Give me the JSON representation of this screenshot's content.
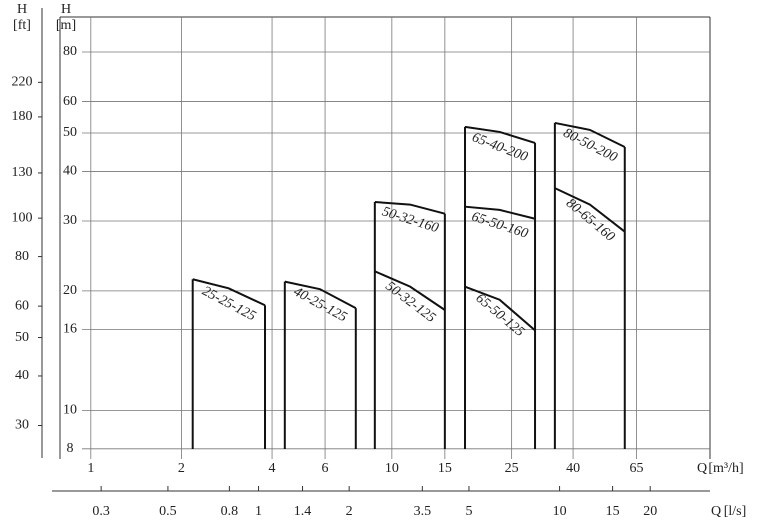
{
  "chart_data": {
    "type": "pump-curves",
    "y_title": "H",
    "y_unit": "[m]",
    "y2_title": "H",
    "y2_unit": "[ft]",
    "x_title": "Q",
    "x_unit": "[m³/h]",
    "x2_title": "Q",
    "x2_unit": "[l/s]",
    "log_x": true,
    "log_y": true,
    "grid": true,
    "color": "#111111",
    "xlim": [
      0.79,
      114
    ],
    "xticks": [
      1,
      2,
      4,
      6,
      10,
      15,
      25,
      40,
      65
    ],
    "x2lim": [
      0.219,
      31.6
    ],
    "x2ticks": [
      0.3,
      0.5,
      0.8,
      1,
      1.4,
      2,
      3.5,
      5,
      10,
      15,
      20
    ],
    "ylim": [
      7.54,
      98
    ],
    "yticks": [
      8,
      10,
      16,
      20,
      30,
      40,
      50,
      60,
      80
    ],
    "y2lim": [
      24.7,
      321.5
    ],
    "y2ticks": [
      30,
      40,
      50,
      60,
      80,
      100,
      130,
      180,
      220
    ],
    "groups": [
      {
        "q": [
          2.18,
          2.87,
          3.79
        ],
        "curves": [
          {
            "label": "25-25-125",
            "h": [
              21.4,
              20.3,
              18.4
            ]
          }
        ]
      },
      {
        "q": [
          4.41,
          5.77,
          7.59
        ],
        "curves": [
          {
            "label": "40-25-125",
            "h": [
              21.1,
              20.2,
              18.1
            ]
          }
        ]
      },
      {
        "q": [
          8.78,
          11.5,
          15.0
        ],
        "curves": [
          {
            "label": "50-32-160",
            "h": [
              33.5,
              33.0,
              31.3
            ]
          },
          {
            "label": "50-32-125",
            "h": [
              22.4,
              20.5,
              17.9
            ]
          }
        ]
      },
      {
        "q": [
          17.5,
          22.8,
          29.9
        ],
        "curves": [
          {
            "label": "65-40-200",
            "h": [
              51.8,
              50.3,
              47.2
            ]
          },
          {
            "label": "65-50-160",
            "h": [
              32.6,
              32.0,
              30.4
            ]
          },
          {
            "label": "65-50-125",
            "h": [
              20.5,
              19.0,
              15.9
            ]
          }
        ]
      },
      {
        "q": [
          34.8,
          45.5,
          59.4
        ],
        "curves": [
          {
            "label": "80-50-200",
            "h": [
              53.0,
              50.9,
              46.1
            ]
          },
          {
            "label": "80-65-160",
            "h": [
              36.3,
              33.0,
              28.2
            ]
          }
        ]
      }
    ]
  }
}
